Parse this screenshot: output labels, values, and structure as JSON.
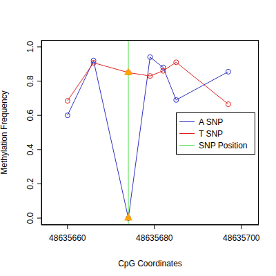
{
  "chart_data": {
    "type": "line",
    "x_label": "CpG Coordinates",
    "y_label": "Methylation Frequency",
    "xlim": [
      48635654,
      48635704
    ],
    "xticks": [
      48635660,
      48635680,
      48635700
    ],
    "ylim": [
      -0.04,
      1.04
    ],
    "yticks": [
      {
        "value": 0,
        "label": "0.0"
      },
      {
        "value": 0.2,
        "label": "0.2"
      },
      {
        "value": 0.4,
        "label": "0.4"
      },
      {
        "value": 0.6,
        "label": "0.6"
      },
      {
        "value": 0.8,
        "label": "0.8"
      },
      {
        "value": 1,
        "label": "1.0"
      }
    ],
    "x": [
      48635660,
      48635666,
      48635674,
      48635679,
      48635682,
      48635685,
      48635697
    ],
    "series": [
      {
        "name": "A SNP",
        "color": "#3030c0",
        "values": [
          0.6,
          0.92,
          0.0,
          0.94,
          0.88,
          0.69,
          0.855
        ]
      },
      {
        "name": "T SNP",
        "color": "#e02020",
        "values": [
          0.685,
          0.907,
          0.85,
          0.83,
          0.86,
          0.91,
          0.665
        ]
      }
    ],
    "snp_position": {
      "name": "SNP Position",
      "color": "#4cdd4c",
      "x": 48635674
    },
    "snp_markers": {
      "color": "#ffa500",
      "values": [
        0.85,
        0.0
      ]
    },
    "marker": "circle",
    "legend": "right"
  }
}
